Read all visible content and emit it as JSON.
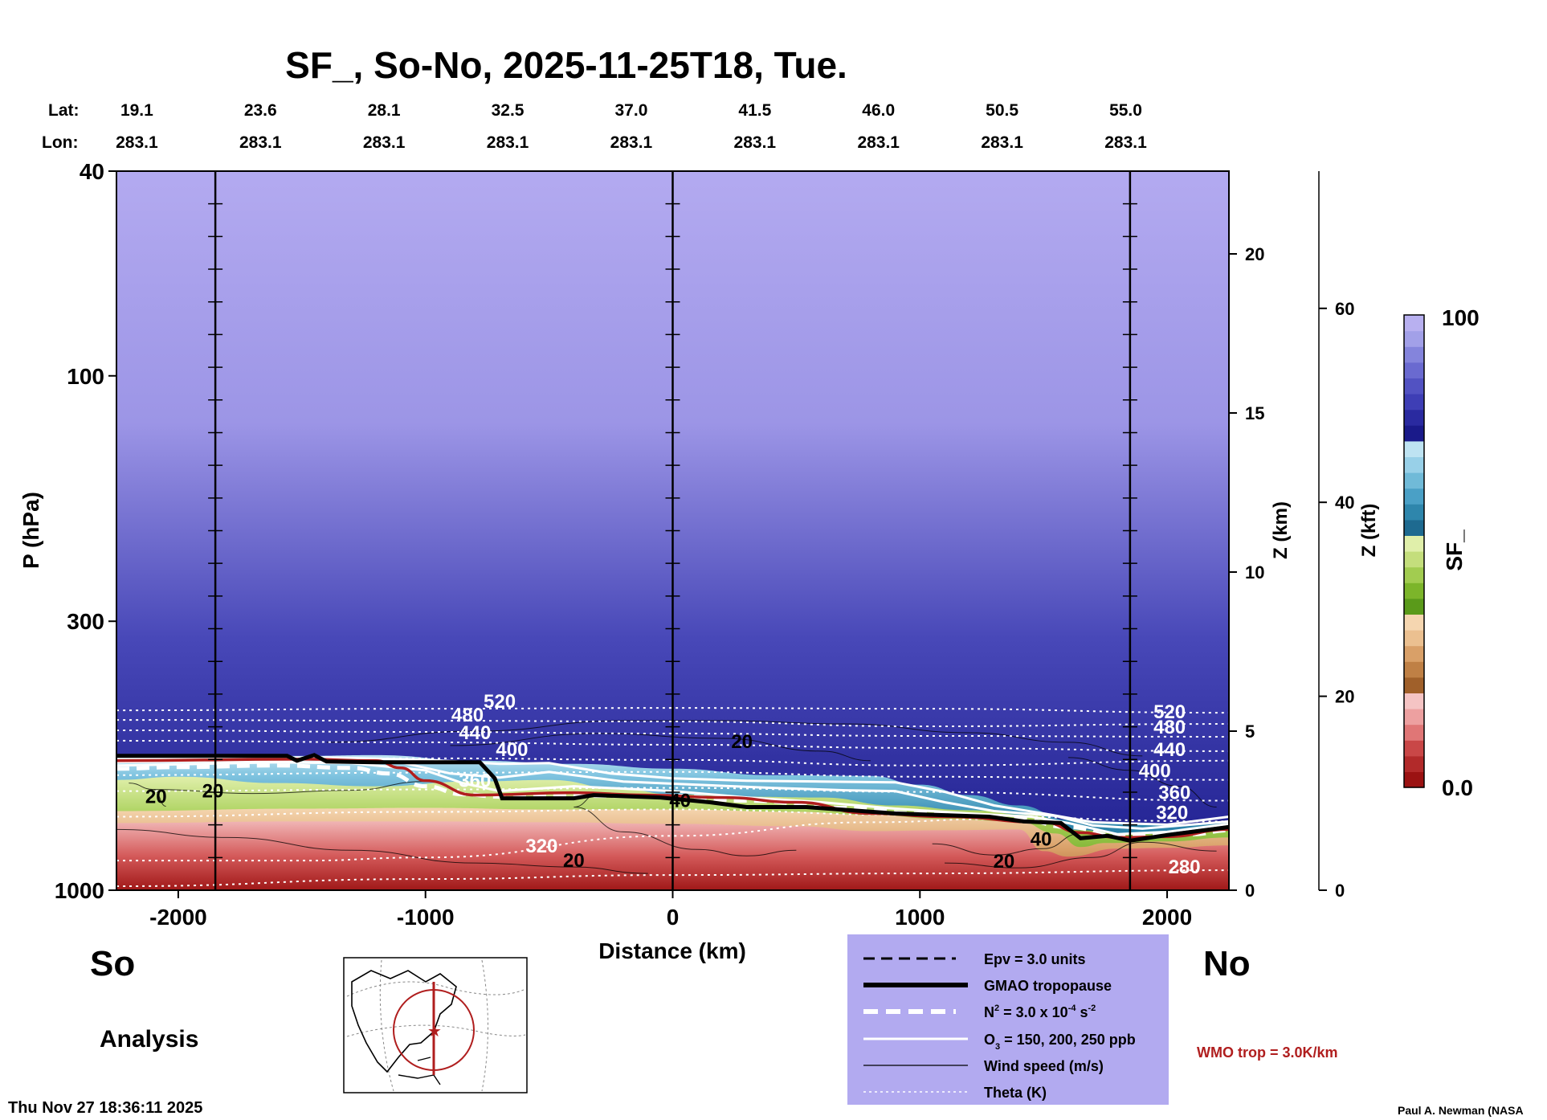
{
  "chart_data": {
    "type": "heatmap",
    "title": "SF_, So-No, 2025-11-25T18, Tue.",
    "xlabel": "Distance (km)",
    "ylabel": "P (hPa)",
    "right_axis_km_label": "Z (km)",
    "right_axis_kft_label": "Z (kft)",
    "colorbar_label": "SF_",
    "colorbar_max_label": "100",
    "colorbar_min_label": "0.0",
    "colorbar_colors": [
      "#9b1212",
      "#b22a2a",
      "#c94747",
      "#e07676",
      "#eda0a0",
      "#f5c4c4",
      "#a0602a",
      "#bf8045",
      "#d9a068",
      "#ebc090",
      "#f5d6b0",
      "#5a9a1a",
      "#7cb52a",
      "#a2cc50",
      "#c4de7c",
      "#e0efaa",
      "#1e6a90",
      "#2e86ac",
      "#4aa0c6",
      "#70bad8",
      "#98d0e8",
      "#bee3f2",
      "#1a1a8a",
      "#2a2aa0",
      "#3e3eb5",
      "#5252c2",
      "#6a6ad0",
      "#8484dc",
      "#a2a0e8",
      "#b8b0f0"
    ],
    "x_range": [
      -2250,
      2250
    ],
    "x_ticks": [
      -2000,
      -1000,
      0,
      1000,
      2000
    ],
    "x_tick_labels": [
      "-2000",
      "-1000",
      "0",
      "1000",
      "2000"
    ],
    "y_ticks_hpa": [
      40,
      100,
      300,
      1000
    ],
    "y_tick_labels": [
      "40",
      "100",
      "300",
      "1000"
    ],
    "z_km_ticks": [
      0,
      5,
      10,
      15,
      20
    ],
    "z_km_tick_labels": [
      "0",
      "5",
      "10",
      "15",
      "20"
    ],
    "z_kft_ticks": [
      0,
      20,
      40,
      60
    ],
    "z_kft_tick_labels": [
      "0",
      "20",
      "40",
      "60"
    ],
    "vertical_lines_km": [
      -1850,
      0,
      1850
    ],
    "lat_label": "Lat:",
    "lon_label": "Lon:",
    "stations": [
      {
        "x": -2200,
        "lat": "19.1",
        "lon": "283.1"
      },
      {
        "x": -1700,
        "lat": "23.6",
        "lon": "283.1"
      },
      {
        "x": -1200,
        "lat": "28.1",
        "lon": "283.1"
      },
      {
        "x": -700,
        "lat": "32.5",
        "lon": "283.1"
      },
      {
        "x": -200,
        "lat": "37.0",
        "lon": "283.1"
      },
      {
        "x": 300,
        "lat": "41.5",
        "lon": "283.1"
      },
      {
        "x": 800,
        "lat": "46.0",
        "lon": "283.1"
      },
      {
        "x": 1300,
        "lat": "50.5",
        "lon": "283.1"
      },
      {
        "x": 1800,
        "lat": "55.0",
        "lon": "283.1"
      }
    ],
    "theta_labels": [
      {
        "text": "520",
        "x": -700,
        "z": 22.8
      },
      {
        "text": "480",
        "x": -830,
        "z": 21.1
      },
      {
        "text": "440",
        "x": -800,
        "z": 18.9
      },
      {
        "text": "400",
        "x": -650,
        "z": 16.8
      },
      {
        "text": "360",
        "x": -800,
        "z": 12.9
      },
      {
        "text": "320",
        "x": -530,
        "z": 4.7
      },
      {
        "text": "520",
        "x": 2010,
        "z": 21.5
      },
      {
        "text": "480",
        "x": 2010,
        "z": 19.6
      },
      {
        "text": "440",
        "x": 2010,
        "z": 16.8
      },
      {
        "text": "400",
        "x": 1950,
        "z": 14.1
      },
      {
        "text": "360",
        "x": 2030,
        "z": 11.4
      },
      {
        "text": "320",
        "x": 2020,
        "z": 8.9
      },
      {
        "text": "280",
        "x": 2070,
        "z": 2.1
      }
    ],
    "wind_labels": [
      {
        "text": "20",
        "x": 280,
        "z": 17.8
      },
      {
        "text": "20",
        "x": -1860,
        "z": 11.6
      },
      {
        "text": "20",
        "x": -2090,
        "z": 10.9
      },
      {
        "text": "40",
        "x": 30,
        "z": 10.4
      },
      {
        "text": "40",
        "x": 1490,
        "z": 5.6
      },
      {
        "text": "20",
        "x": -400,
        "z": 2.9
      },
      {
        "text": "20",
        "x": 1340,
        "z": 2.8
      }
    ],
    "gmao_tropopause": [
      [
        -2250,
        16.8
      ],
      [
        -1560,
        16.8
      ],
      [
        -1520,
        16.2
      ],
      [
        -1450,
        16.9
      ],
      [
        -1400,
        16.1
      ],
      [
        -1200,
        16.0
      ],
      [
        -780,
        16.0
      ],
      [
        -720,
        14.0
      ],
      [
        -690,
        11.5
      ],
      [
        -400,
        11.5
      ],
      [
        -320,
        11.9
      ],
      [
        -50,
        11.6
      ],
      [
        150,
        11.0
      ],
      [
        300,
        10.4
      ],
      [
        540,
        10.4
      ],
      [
        900,
        9.6
      ],
      [
        1280,
        9.2
      ],
      [
        1420,
        8.6
      ],
      [
        1570,
        8.4
      ],
      [
        1650,
        6.5
      ],
      [
        1760,
        6.8
      ],
      [
        1850,
        6.2
      ],
      [
        2000,
        6.9
      ],
      [
        2250,
        7.9
      ]
    ],
    "wmo_tropopause": [
      [
        -2250,
        16.2
      ],
      [
        -1500,
        16.4
      ],
      [
        -1200,
        16.2
      ],
      [
        -1100,
        15.3
      ],
      [
        -1000,
        13.7
      ],
      [
        -800,
        11.9
      ],
      [
        -400,
        12.2
      ],
      [
        -100,
        11.9
      ],
      [
        200,
        11.6
      ],
      [
        500,
        11.0
      ],
      [
        800,
        9.6
      ],
      [
        1100,
        9.2
      ],
      [
        1500,
        8.5
      ],
      [
        1650,
        7.2
      ],
      [
        1800,
        6.6
      ],
      [
        2000,
        6.7
      ],
      [
        2250,
        7.6
      ]
    ],
    "n2_line": [
      [
        -2250,
        15.2
      ],
      [
        -2000,
        15.4
      ],
      [
        -1600,
        15.6
      ],
      [
        -1300,
        15.3
      ],
      [
        -1150,
        14.6
      ],
      [
        -1000,
        13.0
      ],
      [
        -850,
        12.0
      ],
      [
        -700,
        11.7
      ],
      [
        -400,
        11.8
      ],
      [
        0,
        11.8
      ],
      [
        300,
        11.2
      ],
      [
        700,
        10.3
      ],
      [
        1000,
        9.6
      ],
      [
        1400,
        8.9
      ],
      [
        1600,
        7.9
      ],
      [
        1800,
        6.8
      ],
      [
        2100,
        7.0
      ],
      [
        2250,
        7.5
      ]
    ],
    "o3_line_150": [
      [
        -2250,
        15.6
      ],
      [
        -1600,
        16.0
      ],
      [
        -1300,
        15.9
      ],
      [
        -1000,
        15.0
      ],
      [
        -850,
        13.4
      ],
      [
        -700,
        12.4
      ],
      [
        -400,
        13.0
      ],
      [
        0,
        12.4
      ],
      [
        300,
        11.6
      ],
      [
        600,
        11.0
      ],
      [
        900,
        10.2
      ],
      [
        1200,
        9.6
      ],
      [
        1450,
        9.2
      ],
      [
        1600,
        8.4
      ],
      [
        1800,
        7.0
      ],
      [
        2000,
        7.3
      ],
      [
        2250,
        8.3
      ]
    ],
    "o3_line_200": [
      [
        -2250,
        16.0
      ],
      [
        -1500,
        16.3
      ],
      [
        -1100,
        16.0
      ],
      [
        -900,
        14.6
      ],
      [
        -700,
        14.1
      ],
      [
        -500,
        14.8
      ],
      [
        -200,
        13.6
      ],
      [
        100,
        13.2
      ],
      [
        400,
        12.8
      ],
      [
        700,
        12.5
      ],
      [
        900,
        12.4
      ],
      [
        1100,
        11.0
      ],
      [
        1300,
        9.9
      ],
      [
        1550,
        9.3
      ],
      [
        1700,
        8.1
      ],
      [
        1900,
        7.7
      ],
      [
        2250,
        8.6
      ]
    ],
    "o3_line_250": [
      [
        -2250,
        16.4
      ],
      [
        -1400,
        16.6
      ],
      [
        -1000,
        16.3
      ],
      [
        -700,
        15.8
      ],
      [
        -500,
        15.9
      ],
      [
        -250,
        14.6
      ],
      [
        0,
        14.0
      ],
      [
        300,
        13.7
      ],
      [
        600,
        13.6
      ],
      [
        900,
        13.5
      ],
      [
        1100,
        12.3
      ],
      [
        1300,
        10.6
      ],
      [
        1500,
        9.6
      ],
      [
        1700,
        8.5
      ],
      [
        2000,
        8.2
      ],
      [
        2250,
        9.2
      ]
    ],
    "theta_paths": [
      [
        [
          -2250,
          22.5
        ],
        [
          -1000,
          22.7
        ],
        [
          0,
          22.8
        ],
        [
          1000,
          22.7
        ],
        [
          2250,
          22.2
        ]
      ],
      [
        [
          -2250,
          21.3
        ],
        [
          -1000,
          21.2
        ],
        [
          0,
          21.1
        ],
        [
          1000,
          20.5
        ],
        [
          2250,
          20.8
        ]
      ],
      [
        [
          -2250,
          20.0
        ],
        [
          -1000,
          19.8
        ],
        [
          0,
          19.6
        ],
        [
          1000,
          19.3
        ],
        [
          2250,
          19.2
        ]
      ],
      [
        [
          -2250,
          18.7
        ],
        [
          -1000,
          18.5
        ],
        [
          0,
          18.2
        ],
        [
          1000,
          17.8
        ],
        [
          2250,
          17.4
        ]
      ],
      [
        [
          -2250,
          16.3
        ],
        [
          -1000,
          16.5
        ],
        [
          0,
          16.3
        ],
        [
          1000,
          15.6
        ],
        [
          2250,
          16.2
        ]
      ],
      [
        [
          -2250,
          14.4
        ],
        [
          -1000,
          14.7
        ],
        [
          0,
          14.8
        ],
        [
          1000,
          14.2
        ],
        [
          2250,
          13.8
        ]
      ],
      [
        [
          -2250,
          12.4
        ],
        [
          -1000,
          12.6
        ],
        [
          0,
          12.8
        ],
        [
          1000,
          12.3
        ],
        [
          2250,
          11.2
        ]
      ],
      [
        [
          -2250,
          9.2
        ],
        [
          -1000,
          9.8
        ],
        [
          0,
          10.1
        ],
        [
          1000,
          9.4
        ],
        [
          2250,
          8.6
        ]
      ],
      [
        [
          -2250,
          3.7
        ],
        [
          -1500,
          3.7
        ],
        [
          -1000,
          4.1
        ],
        [
          0,
          6.8
        ],
        [
          800,
          8.5
        ],
        [
          1300,
          8.9
        ]
      ],
      [
        [
          -2250,
          0.5
        ],
        [
          -1000,
          1.4
        ],
        [
          0,
          1.9
        ],
        [
          1000,
          2.1
        ],
        [
          2250,
          2.5
        ]
      ]
    ],
    "wind_paths": [
      [
        [
          -1400,
          18.5
        ],
        [
          -800,
          19.9
        ],
        [
          -200,
          21.2
        ],
        [
          200,
          21.2
        ],
        [
          700,
          20.8
        ],
        [
          1200,
          19.7
        ],
        [
          1600,
          18.5
        ],
        [
          1900,
          16.8
        ]
      ],
      [
        [
          -900,
          18.1
        ],
        [
          -300,
          19.6
        ],
        [
          200,
          19.0
        ],
        [
          600,
          17.4
        ],
        [
          800,
          16.2
        ]
      ],
      [
        [
          -2100,
          12.6
        ],
        [
          -1700,
          12.1
        ],
        [
          -1300,
          12.5
        ],
        [
          -1000,
          13.6
        ]
      ],
      [
        [
          -2200,
          13.4
        ],
        [
          -2100,
          12.6
        ],
        [
          -2050,
          10.5
        ]
      ],
      [
        [
          -2250,
          7.6
        ],
        [
          -1800,
          6.6
        ],
        [
          -1300,
          5.0
        ],
        [
          -800,
          3.4
        ],
        [
          -400,
          2.9
        ],
        [
          -100,
          2.1
        ]
      ],
      [
        [
          -300,
          12.1
        ],
        [
          -400,
          10.4
        ],
        [
          -200,
          7.3
        ],
        [
          100,
          5.1
        ],
        [
          300,
          4.3
        ],
        [
          500,
          5.0
        ]
      ],
      [
        [
          1050,
          5.8
        ],
        [
          1300,
          4.4
        ],
        [
          1500,
          5.2
        ],
        [
          1650,
          7.1
        ]
      ],
      [
        [
          1100,
          3.4
        ],
        [
          1400,
          2.8
        ],
        [
          1700,
          4.1
        ],
        [
          1900,
          6.0
        ],
        [
          2200,
          4.9
        ]
      ],
      [
        [
          1600,
          16.6
        ],
        [
          1850,
          15.0
        ],
        [
          2050,
          13.0
        ],
        [
          2200,
          10.4
        ]
      ]
    ],
    "sf_profile_top": [
      [
        -2250,
        16.7
      ],
      [
        -1500,
        16.8
      ],
      [
        -1200,
        16.9
      ],
      [
        -800,
        16.2
      ],
      [
        -400,
        15.8
      ],
      [
        0,
        15.2
      ],
      [
        400,
        14.4
      ],
      [
        800,
        14.3
      ],
      [
        1000,
        13.2
      ],
      [
        1200,
        11.9
      ],
      [
        1400,
        10.6
      ],
      [
        1600,
        8.8
      ],
      [
        1800,
        8.3
      ],
      [
        2000,
        8.2
      ],
      [
        2250,
        8.6
      ]
    ],
    "sf_profile_green_top": [
      [
        -2250,
        13.8
      ],
      [
        -2000,
        14.2
      ],
      [
        -1600,
        13.4
      ],
      [
        -1200,
        13.0
      ],
      [
        -800,
        13.6
      ],
      [
        -500,
        13.8
      ],
      [
        -200,
        12.6
      ],
      [
        0,
        12.0
      ],
      [
        300,
        11.7
      ],
      [
        600,
        11.6
      ],
      [
        900,
        10.6
      ],
      [
        1200,
        10.0
      ],
      [
        1450,
        9.4
      ],
      [
        1650,
        7.5
      ],
      [
        1850,
        7.0
      ],
      [
        2250,
        7.5
      ]
    ],
    "sf_profile_orange_top": [
      [
        -2250,
        9.9
      ],
      [
        -1500,
        10.2
      ],
      [
        -1000,
        10.3
      ],
      [
        -500,
        10.1
      ],
      [
        0,
        10.1
      ],
      [
        500,
        9.8
      ],
      [
        800,
        9.4
      ],
      [
        1100,
        8.9
      ],
      [
        1400,
        8.6
      ],
      [
        1550,
        7.1
      ],
      [
        1650,
        5.4
      ],
      [
        1750,
        5.9
      ],
      [
        2000,
        6.1
      ],
      [
        2250,
        6.6
      ]
    ],
    "sf_profile_red_top": [
      [
        -2250,
        8.4
      ],
      [
        -1500,
        8.6
      ],
      [
        -1000,
        8.6
      ],
      [
        -500,
        8.5
      ],
      [
        0,
        8.3
      ],
      [
        500,
        8.0
      ],
      [
        800,
        7.4
      ],
      [
        1100,
        7.5
      ],
      [
        1400,
        7.6
      ],
      [
        1500,
        4.9
      ],
      [
        1600,
        4.2
      ],
      [
        1800,
        5.2
      ],
      [
        2000,
        5.3
      ],
      [
        2250,
        5.6
      ]
    ],
    "frame": {
      "so_label": "So",
      "no_label": "No",
      "analysis_label": "Analysis",
      "timestamp": "Thu Nov 27 18:36:11 2025",
      "credit": "Paul A. Newman (NASA",
      "wmo_text": "WMO trop = 3.0K/km"
    },
    "legend": {
      "epv_prefix": "Epv = 3.0 units",
      "gmao": "GMAO tropopause",
      "n2_base": "N",
      "n2_sup": "2",
      "n2_mid": " = 3.0 x 10",
      "n2_exp": "-4",
      "n2_tail": " s",
      "n2_tail_exp": "-2",
      "o3_base": "O",
      "o3_sub": "3",
      "o3_tail": " = 150, 200, 250 ppb",
      "wind": "Wind speed (m/s)",
      "theta": "Theta (K)"
    }
  }
}
